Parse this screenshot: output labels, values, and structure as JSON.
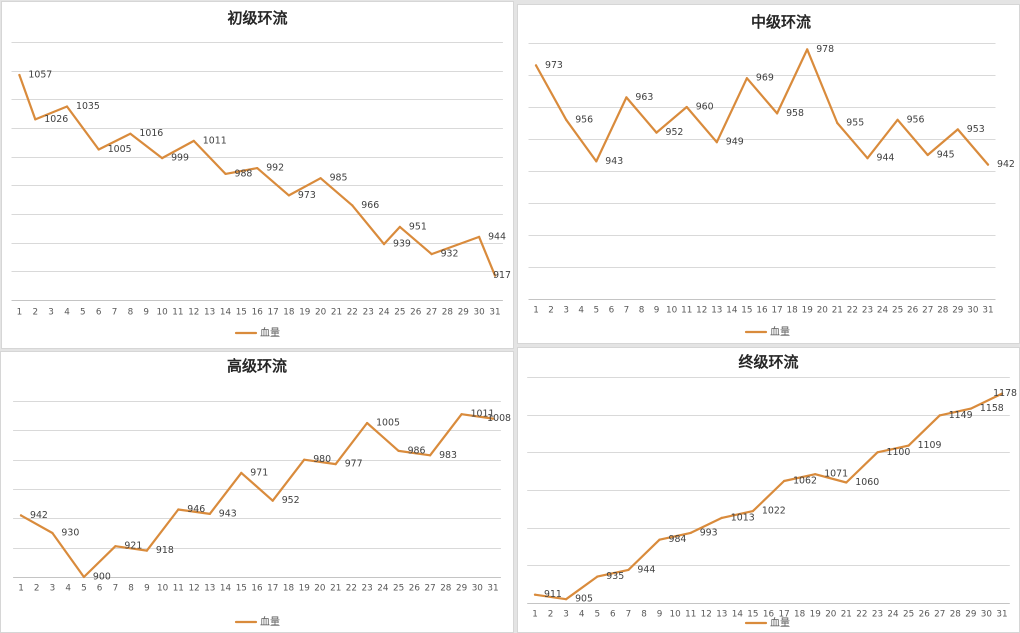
{
  "chart_data": [
    {
      "type": "line",
      "title": "初级环流",
      "categories": [
        "1",
        "2",
        "3",
        "4",
        "5",
        "6",
        "7",
        "8",
        "9",
        "10",
        "11",
        "12",
        "13",
        "14",
        "15",
        "16",
        "17",
        "18",
        "19",
        "20",
        "21",
        "22",
        "23",
        "24",
        "25",
        "26",
        "27",
        "28",
        "29",
        "30",
        "31"
      ],
      "ylim": [
        900,
        1080
      ],
      "y_grid_step": 20,
      "grid": true,
      "legend": "bottom",
      "series": [
        {
          "name": "血量",
          "color": "#D98B3C",
          "x": [
            1,
            2,
            4,
            6,
            8,
            10,
            12,
            14,
            16,
            18,
            20,
            22,
            24,
            25,
            27,
            30,
            31
          ],
          "y": [
            1057,
            1026,
            1035,
            1005,
            1016,
            999,
            1011,
            988,
            992,
            973,
            985,
            966,
            939,
            951,
            932,
            944,
            917
          ]
        }
      ]
    },
    {
      "type": "line",
      "title": "中级环流",
      "categories": [
        "1",
        "2",
        "3",
        "4",
        "5",
        "6",
        "7",
        "8",
        "9",
        "10",
        "11",
        "12",
        "13",
        "14",
        "15",
        "16",
        "17",
        "18",
        "19",
        "20",
        "21",
        "22",
        "23",
        "24",
        "25",
        "26",
        "27",
        "28",
        "29",
        "30",
        "31"
      ],
      "ylim": [
        900,
        980
      ],
      "y_grid_step": 10,
      "grid": true,
      "legend": "bottom",
      "series": [
        {
          "name": "血量",
          "color": "#D98B3C",
          "x": [
            1,
            3,
            5,
            7,
            9,
            11,
            13,
            15,
            17,
            19,
            21,
            23,
            25,
            27,
            29,
            31
          ],
          "y": [
            973,
            956,
            943,
            963,
            952,
            960,
            949,
            969,
            958,
            978,
            955,
            944,
            956,
            945,
            953,
            942
          ]
        }
      ]
    },
    {
      "type": "line",
      "title": "高级环流",
      "categories": [
        "1",
        "2",
        "3",
        "4",
        "5",
        "6",
        "7",
        "8",
        "9",
        "10",
        "11",
        "12",
        "13",
        "14",
        "15",
        "16",
        "17",
        "18",
        "19",
        "20",
        "21",
        "22",
        "23",
        "24",
        "25",
        "26",
        "27",
        "28",
        "29",
        "30",
        "31"
      ],
      "ylim": [
        900,
        1020
      ],
      "y_grid_step": 20,
      "grid": true,
      "legend": "bottom",
      "series": [
        {
          "name": "血量",
          "color": "#D98B3C",
          "x": [
            1,
            3,
            5,
            7,
            9,
            11,
            13,
            15,
            17,
            19,
            21,
            23,
            25,
            27,
            29,
            31
          ],
          "y": [
            942,
            930,
            900,
            921,
            918,
            946,
            943,
            971,
            952,
            980,
            977,
            1005,
            986,
            983,
            1011,
            1008
          ]
        }
      ]
    },
    {
      "type": "line",
      "title": "终级环流",
      "categories": [
        "1",
        "2",
        "3",
        "4",
        "5",
        "6",
        "7",
        "8",
        "9",
        "10",
        "11",
        "12",
        "13",
        "14",
        "15",
        "16",
        "17",
        "18",
        "19",
        "20",
        "21",
        "22",
        "23",
        "24",
        "25",
        "26",
        "27",
        "28",
        "29",
        "30",
        "31"
      ],
      "ylim": [
        900,
        1200
      ],
      "y_grid_step": 50,
      "grid": true,
      "legend": "bottom",
      "series": [
        {
          "name": "血量",
          "color": "#D98B3C",
          "x": [
            1,
            3,
            5,
            7,
            9,
            11,
            13,
            15,
            17,
            19,
            21,
            23,
            25,
            27,
            29,
            31
          ],
          "y": [
            911,
            905,
            935,
            944,
            984,
            993,
            1013,
            1022,
            1062,
            1071,
            1060,
            1100,
            1109,
            1149,
            1158,
            1178
          ]
        }
      ]
    }
  ]
}
